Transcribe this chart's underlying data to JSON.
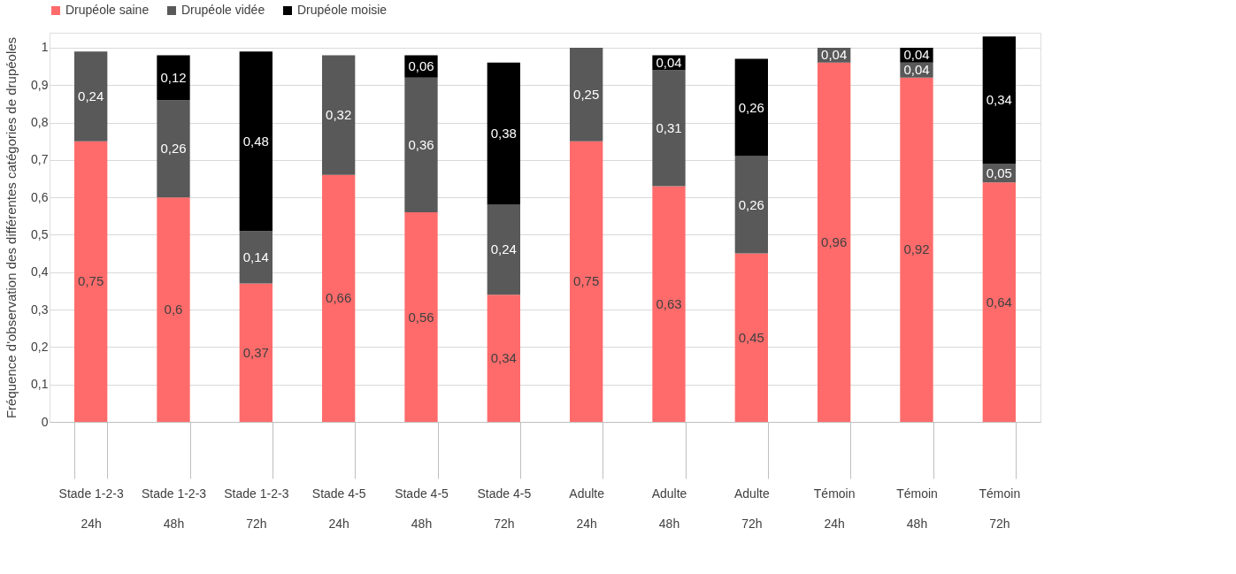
{
  "chart_data": {
    "type": "bar",
    "stacked": true,
    "ylabel": "Fréquence d'observation des différentes catégories de drupéoles",
    "categories": [
      "Stade 1-2-3\n24h",
      "Stade 1-2-3\n48h",
      "Stade 1-2-3\n72h",
      "Stade 4-5\n24h",
      "Stade 4-5\n48h",
      "Stade 4-5\n72h",
      "Adulte\n24h",
      "Adulte\n48h",
      "Adulte\n72h",
      "Témoin\n24h",
      "Témoin\n48h",
      "Témoin\n72h"
    ],
    "series": [
      {
        "name": "Drupéole saine",
        "color": "#ff6b6b",
        "values": [
          0.75,
          0.6,
          0.37,
          0.66,
          0.56,
          0.34,
          0.75,
          0.63,
          0.45,
          0.96,
          0.92,
          0.64
        ],
        "value_labels": [
          "0,75",
          "0,6",
          "0,37",
          "0,66",
          "0,56",
          "0,34",
          "0,75",
          "0,63",
          "0,45",
          "0,96",
          "0,92",
          "0,64"
        ]
      },
      {
        "name": "Drupéole vidée",
        "color": "#595959",
        "values": [
          0.24,
          0.26,
          0.14,
          0.32,
          0.36,
          0.24,
          0.25,
          0.31,
          0.26,
          0.04,
          0.04,
          0.05
        ],
        "value_labels": [
          "0,24",
          "0,26",
          "0,14",
          "0,32",
          "0,36",
          "0,24",
          "0,25",
          "0,31",
          "0,26",
          "0,04",
          "0,04",
          "0,05"
        ]
      },
      {
        "name": "Drupéole moisie",
        "color": "#000000",
        "values": [
          null,
          0.12,
          0.48,
          null,
          0.06,
          0.38,
          null,
          0.04,
          0.26,
          null,
          0.04,
          0.34
        ],
        "value_labels": [
          null,
          "0,12",
          "0,48",
          null,
          "0,06",
          "0,38",
          null,
          "0,04",
          "0,26",
          null,
          "0,04",
          "0,34"
        ]
      }
    ],
    "ylim": [
      0,
      1.04
    ],
    "yticks": [
      0,
      {
        "value": 0.1,
        "label": "0,1"
      },
      {
        "value": 0.2,
        "label": "0,2"
      },
      {
        "value": 0.3,
        "label": "0,3"
      },
      {
        "value": 0.4,
        "label": "0,4"
      },
      {
        "value": 0.5,
        "label": "0,5"
      },
      {
        "value": 0.6,
        "label": "0,6"
      },
      {
        "value": 0.7,
        "label": "0,7"
      },
      {
        "value": 0.8,
        "label": "0,8"
      },
      {
        "value": 0.9,
        "label": "0,9"
      },
      1
    ],
    "grid": "y",
    "legend": "top"
  }
}
